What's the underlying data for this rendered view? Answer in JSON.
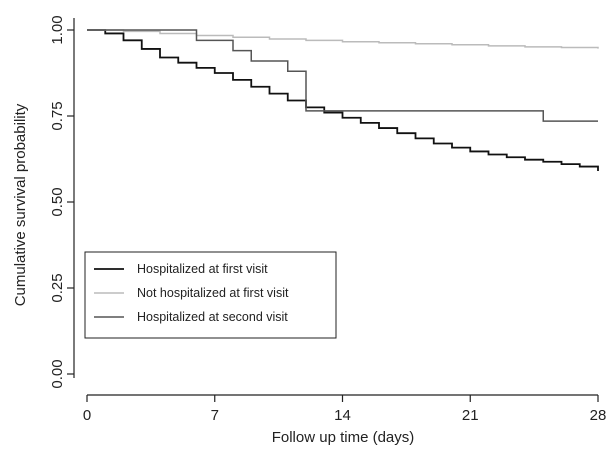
{
  "chart_data": {
    "type": "line",
    "step": true,
    "title": "",
    "xlabel": "Follow up time (days)",
    "ylabel": "Cumulative survival probability",
    "xlim": [
      0,
      28
    ],
    "ylim": [
      0,
      1
    ],
    "x_ticks": [
      0,
      7,
      14,
      21,
      28
    ],
    "x_tick_labels": [
      "0",
      "7",
      "14",
      "21",
      "28"
    ],
    "y_ticks": [
      0,
      0.25,
      0.5,
      0.75,
      1
    ],
    "y_tick_labels": [
      "0.00",
      "0.25",
      "0.50",
      "0.75",
      "1.00"
    ],
    "grid": false,
    "legend_position": "lower-left",
    "series": [
      {
        "name": "Hospitalized at first visit",
        "color": "#111111",
        "x": [
          0,
          1,
          2,
          3,
          4,
          5,
          6,
          7,
          8,
          9,
          10,
          11,
          12,
          13,
          14,
          15,
          16,
          17,
          18,
          19,
          20,
          21,
          22,
          23,
          24,
          25,
          26,
          27,
          28
        ],
        "y": [
          1.0,
          0.99,
          0.97,
          0.945,
          0.92,
          0.905,
          0.89,
          0.875,
          0.855,
          0.835,
          0.815,
          0.795,
          0.775,
          0.76,
          0.745,
          0.73,
          0.715,
          0.7,
          0.685,
          0.67,
          0.658,
          0.647,
          0.638,
          0.63,
          0.623,
          0.617,
          0.61,
          0.603,
          0.59
        ]
      },
      {
        "name": "Not hospitalized at first visit",
        "color": "#bbbbbb",
        "x": [
          0,
          2,
          4,
          6,
          8,
          10,
          12,
          14,
          16,
          18,
          20,
          22,
          24,
          26,
          28
        ],
        "y": [
          1.0,
          0.996,
          0.99,
          0.984,
          0.979,
          0.974,
          0.97,
          0.966,
          0.963,
          0.96,
          0.957,
          0.954,
          0.951,
          0.949,
          0.946
        ]
      },
      {
        "name": "Hospitalized at second visit",
        "color": "#555555",
        "x": [
          0,
          6,
          8,
          9,
          11,
          12,
          25,
          28
        ],
        "y": [
          1.0,
          0.97,
          0.94,
          0.91,
          0.88,
          0.765,
          0.735,
          0.735
        ]
      }
    ]
  }
}
